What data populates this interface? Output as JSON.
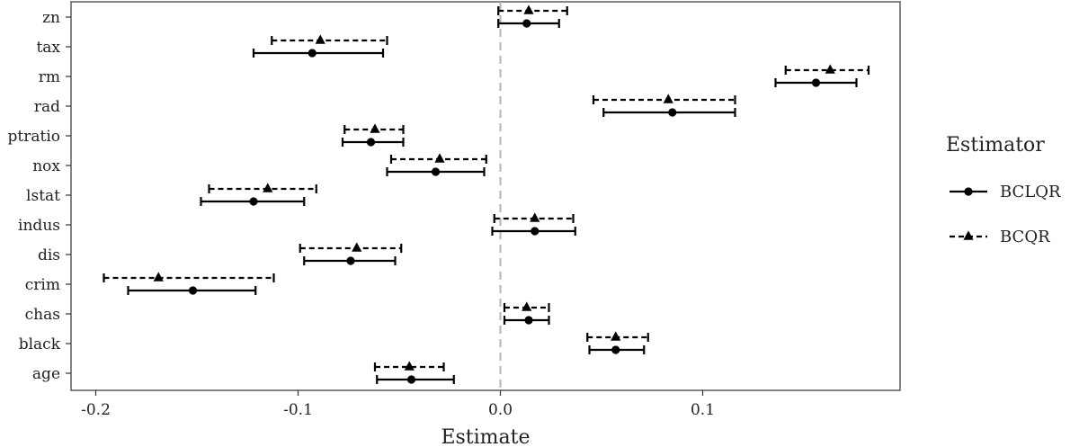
{
  "chart_data": {
    "type": "forest",
    "xlabel": "Estimate",
    "ylabel": "",
    "xlim": [
      -0.22,
      0.2
    ],
    "xticks": [
      -0.2,
      -0.1,
      0.0,
      0.1
    ],
    "xtick_labels": [
      "-0.2",
      "-0.1",
      "0.0",
      "0.1"
    ],
    "reference_line": 0.0,
    "grid": false,
    "legend": {
      "title": "Estimator",
      "position": "right",
      "entries": [
        {
          "name": "BCLQR",
          "line": "solid",
          "marker": "circle"
        },
        {
          "name": "BCQR",
          "line": "dashed",
          "marker": "triangle"
        }
      ]
    },
    "categories": [
      "zn",
      "tax",
      "rm",
      "rad",
      "ptratio",
      "nox",
      "lstat",
      "indus",
      "dis",
      "crim",
      "chas",
      "black",
      "age"
    ],
    "series": [
      {
        "name": "BCLQR",
        "estimate": [
          0.013,
          -0.093,
          0.156,
          0.085,
          -0.064,
          -0.032,
          -0.122,
          0.017,
          -0.074,
          -0.152,
          0.014,
          0.057,
          -0.044
        ],
        "lower": [
          -0.001,
          -0.122,
          0.136,
          0.051,
          -0.078,
          -0.056,
          -0.148,
          -0.004,
          -0.097,
          -0.184,
          0.002,
          0.044,
          -0.061
        ],
        "upper": [
          0.029,
          -0.058,
          0.176,
          0.116,
          -0.048,
          -0.008,
          -0.097,
          0.037,
          -0.052,
          -0.121,
          0.024,
          0.071,
          -0.023
        ]
      },
      {
        "name": "BCQR",
        "estimate": [
          0.014,
          -0.089,
          0.163,
          0.083,
          -0.062,
          -0.03,
          -0.115,
          0.017,
          -0.071,
          -0.169,
          0.013,
          0.057,
          -0.045
        ],
        "lower": [
          -0.001,
          -0.113,
          0.141,
          0.046,
          -0.077,
          -0.054,
          -0.144,
          -0.003,
          -0.099,
          -0.196,
          0.002,
          0.043,
          -0.062
        ],
        "upper": [
          0.033,
          -0.056,
          0.182,
          0.116,
          -0.048,
          -0.007,
          -0.091,
          0.036,
          -0.049,
          -0.112,
          0.024,
          0.073,
          -0.028
        ]
      }
    ]
  }
}
